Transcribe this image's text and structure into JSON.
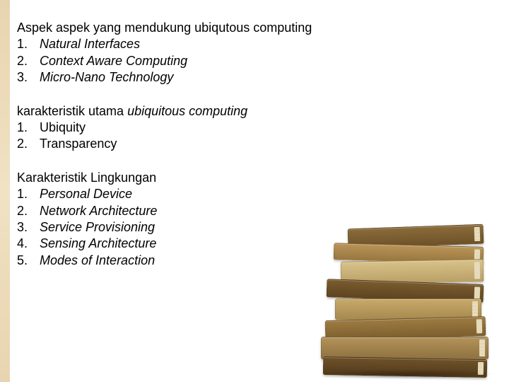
{
  "sections": [
    {
      "title_plain": "Aspek aspek yang mendukung ubiqutous computing",
      "title_italic": "",
      "items_italic": true,
      "items": [
        "Natural Interfaces",
        "Context Aware Computing",
        "Micro-Nano Technology"
      ]
    },
    {
      "title_plain": "karakteristik utama ",
      "title_italic": "ubiquitous computing",
      "items_italic": false,
      "items": [
        "Ubiquity",
        "Transparency"
      ]
    },
    {
      "title_plain": "Karakteristik Lingkungan",
      "title_italic": "",
      "items_italic": true,
      "items": [
        "Personal Device",
        "Network Architecture",
        "Service Provisioning",
        "Sensing Architecture",
        " Modes of Interaction"
      ]
    }
  ],
  "text_color": "#000000",
  "font_size_pt": 14,
  "background_color": "#ffffff",
  "side_strip_color_top": "#e8d4b0",
  "side_strip_color_mid": "#f0e2c4",
  "book_palette": [
    "#8a6b3a",
    "#b99458",
    "#d8c28a",
    "#7a5c2e",
    "#c7a96b",
    "#9d7b42",
    "#b4935a",
    "#6e522a"
  ]
}
